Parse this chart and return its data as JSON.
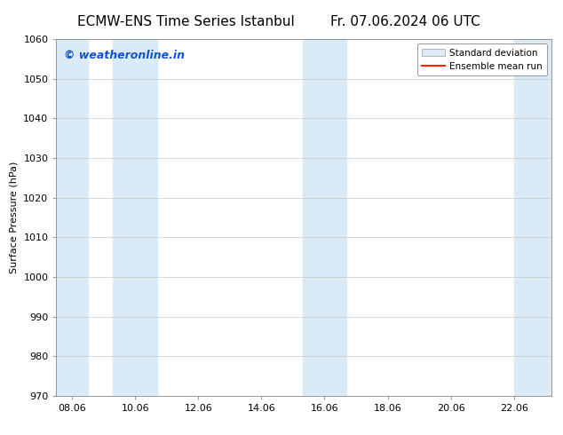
{
  "title_left": "ECMW-ENS Time Series Istanbul",
  "title_right": "Fr. 07.06.2024 06 UTC",
  "ylabel": "Surface Pressure (hPa)",
  "ylim": [
    970,
    1060
  ],
  "yticks": [
    970,
    980,
    990,
    1000,
    1010,
    1020,
    1030,
    1040,
    1050,
    1060
  ],
  "xlim_start": 7.5,
  "xlim_end": 23.2,
  "xtick_labels": [
    "08.06",
    "10.06",
    "12.06",
    "14.06",
    "16.06",
    "18.06",
    "20.06",
    "22.06"
  ],
  "xtick_positions": [
    8.0,
    10.0,
    12.0,
    14.0,
    16.0,
    18.0,
    20.0,
    22.0
  ],
  "shaded_bands": [
    {
      "x_start": 7.5,
      "x_end": 8.5
    },
    {
      "x_start": 9.3,
      "x_end": 10.7
    },
    {
      "x_start": 15.3,
      "x_end": 16.7
    },
    {
      "x_start": 22.0,
      "x_end": 23.2
    }
  ],
  "shade_color": "#daeaf7",
  "shade_alpha": 1.0,
  "watermark_text": "© weatheronline.in",
  "watermark_color": "#1155cc",
  "legend_sd_color": "#daeaf7",
  "legend_sd_edge": "#aaaaaa",
  "legend_mean_color": "#ff2200",
  "background_color": "#ffffff",
  "grid_color": "#c8c8c8",
  "title_fontsize": 11,
  "axis_label_fontsize": 8,
  "tick_fontsize": 8,
  "watermark_fontsize": 9
}
